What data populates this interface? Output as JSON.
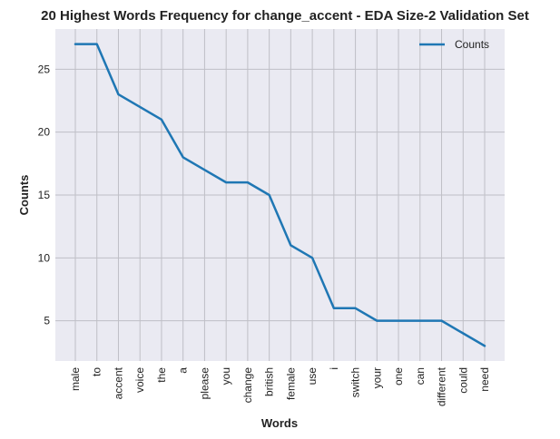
{
  "chart_data": {
    "type": "line",
    "title": "20 Highest Words Frequency for change_accent - EDA Size-2 Validation Set",
    "xlabel": "Words",
    "ylabel": "Counts",
    "categories": [
      "male",
      "to",
      "accent",
      "voice",
      "the",
      "a",
      "please",
      "you",
      "change",
      "british",
      "female",
      "use",
      "i",
      "switch",
      "your",
      "one",
      "can",
      "different",
      "could",
      "need"
    ],
    "series": [
      {
        "name": "Counts",
        "color": "#1f77b4",
        "values": [
          27,
          27,
          23,
          22,
          21,
          18,
          17,
          16,
          16,
          15,
          11,
          10,
          6,
          6,
          5,
          5,
          5,
          5,
          4,
          3
        ]
      }
    ],
    "ylim": [
      1.8,
      28.2
    ],
    "yticks": [
      5,
      10,
      15,
      20,
      25
    ],
    "grid": true,
    "legend_position": "top-right",
    "background": "#eaeaf2",
    "grid_color": "#bfbfc6"
  }
}
